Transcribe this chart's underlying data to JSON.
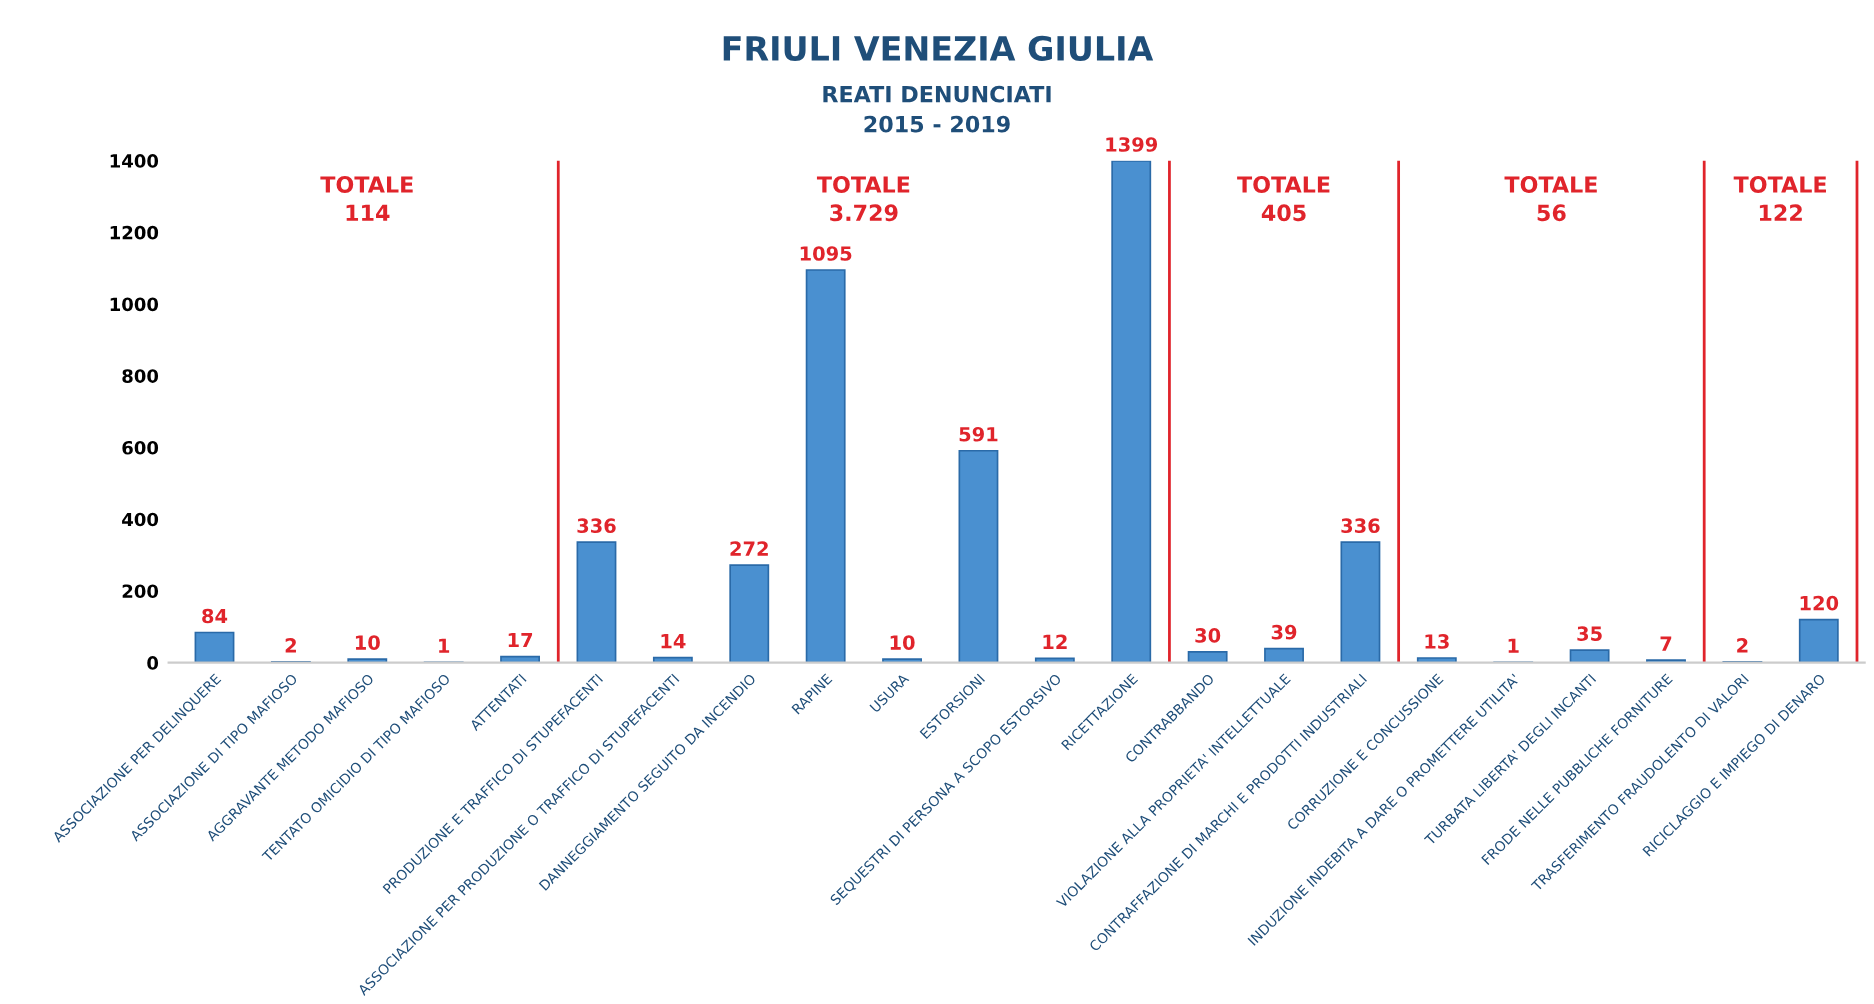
{
  "chart_data": {
    "type": "bar",
    "title": "FRIULI VENEZIA GIULIA",
    "subtitle": "REATI DENUNCIATI\n2015 - 2019",
    "categories": [
      "ASSOCIAZIONE PER DELINQUERE",
      "ASSOCIAZIONE DI TIPO MAFIOSO",
      "AGGRAVANTE METODO MAFIOSO",
      "TENTATO OMICIDIO DI TIPO MAFIOSO",
      "ATTENTATI",
      "PRODUZIONE E TRAFFICO DI STUPEFACENTI",
      "ASSOCIAZIONE PER PRODUZIONE O TRAFFICO DI STUPEFACENTI",
      "DANNEGGIAMENTO SEGUITO DA INCENDIO",
      "RAPINE",
      "USURA",
      "ESTORSIONI",
      "SEQUESTRI DI PERSONA A SCOPO ESTORSIVO",
      "RICETTAZIONE",
      "CONTRABBANDO",
      "VIOLAZIONE ALLA PROPRIETA' INTELLETTUALE",
      "CONTRAFFAZIONE DI MARCHI E PRODOTTI INDUSTRIALI",
      "CORRUZIONE E CONCUSSIONE",
      "INDUZIONE INDEBITA A DARE O PROMETTERE UTILITA'",
      "TURBATA LIBERTA' DEGLI INCANTI",
      "FRODE NELLE PUBBLICHE FORNITURE",
      "TRASFERIMENTO FRAUDOLENTO DI VALORI",
      "RICICLAGGIO E IMPIEGO DI DENARO"
    ],
    "values": [
      84,
      2,
      10,
      1,
      17,
      336,
      14,
      272,
      1095,
      10,
      591,
      12,
      1399,
      30,
      39,
      336,
      13,
      1,
      35,
      7,
      2,
      120
    ],
    "color": "#4a90d0",
    "data_labels": true,
    "ylim": [
      0,
      1400
    ],
    "yticks": [
      0,
      200,
      400,
      600,
      800,
      1000,
      1200,
      1400
    ],
    "grid": false,
    "annotations": [
      "TOTALE\n114",
      "TOTALE\n3.729",
      "TOTALE\n405",
      "TOTALE\n56",
      "TOTALE\n122"
    ]
  }
}
